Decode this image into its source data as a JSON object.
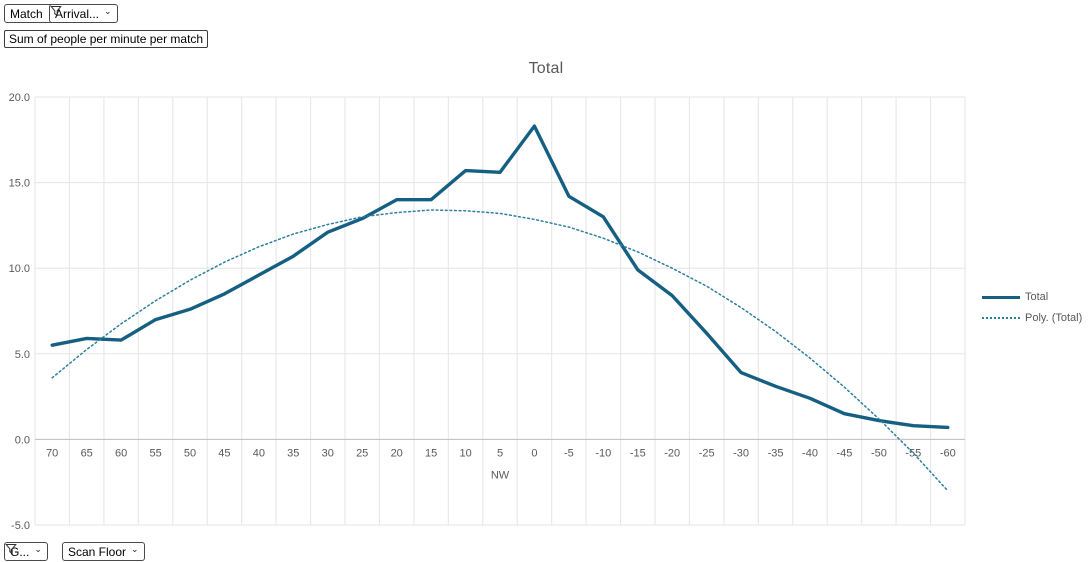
{
  "header_controls": {
    "match_dropdown": {
      "label": "Match"
    },
    "arrival_dropdown": {
      "label": "Arrival..."
    },
    "measure_chip": {
      "label": "Sum of people per minute per match"
    }
  },
  "footer_controls": {
    "group_dropdown": {
      "label": "G..."
    },
    "scan_floor_dropdown": {
      "label": "Scan Floor"
    }
  },
  "icons": {
    "filter": "funnel-filter-icon",
    "chevron": "⌄"
  },
  "chart_data": {
    "type": "line",
    "title": "Total",
    "xlabel": "NW",
    "ylabel": "",
    "ylim": [
      -5,
      20
    ],
    "ytick_labels": [
      "20.0",
      "15.0",
      "10.0",
      "5.0",
      "0.0",
      "-5.0"
    ],
    "grid": true,
    "legend_position": "right",
    "categories": [
      "70",
      "65",
      "60",
      "55",
      "50",
      "45",
      "40",
      "35",
      "30",
      "25",
      "20",
      "15",
      "10",
      "5",
      "0",
      "-5",
      "-10",
      "-15",
      "-20",
      "-25",
      "-30",
      "-35",
      "-40",
      "-45",
      "-50",
      "-55",
      "-60"
    ],
    "series": [
      {
        "name": "Total",
        "style": "solid",
        "color": "#156082",
        "values": [
          5.5,
          5.9,
          5.8,
          7.0,
          7.6,
          8.5,
          9.6,
          10.7,
          12.1,
          12.9,
          14.0,
          14.0,
          15.7,
          15.6,
          18.3,
          14.2,
          13.0,
          9.9,
          8.4,
          6.2,
          3.9,
          3.1,
          2.4,
          1.5,
          1.1,
          0.8,
          0.7
        ]
      },
      {
        "name": "Poly. (Total)",
        "style": "dotted",
        "color": "#2d7f9e",
        "values": [
          3.6,
          5.25,
          6.75,
          8.1,
          9.3,
          10.35,
          11.25,
          12.0,
          12.55,
          13.0,
          13.25,
          13.4,
          13.35,
          13.2,
          12.85,
          12.4,
          11.75,
          10.95,
          10.0,
          8.95,
          7.7,
          6.3,
          4.75,
          3.05,
          1.2,
          -0.8,
          -3.0
        ]
      }
    ],
    "colors": {
      "grid": "#e5e5e5",
      "axis": "#bdbdbd",
      "tick_text": "#595959",
      "title_text": "#595959"
    }
  }
}
